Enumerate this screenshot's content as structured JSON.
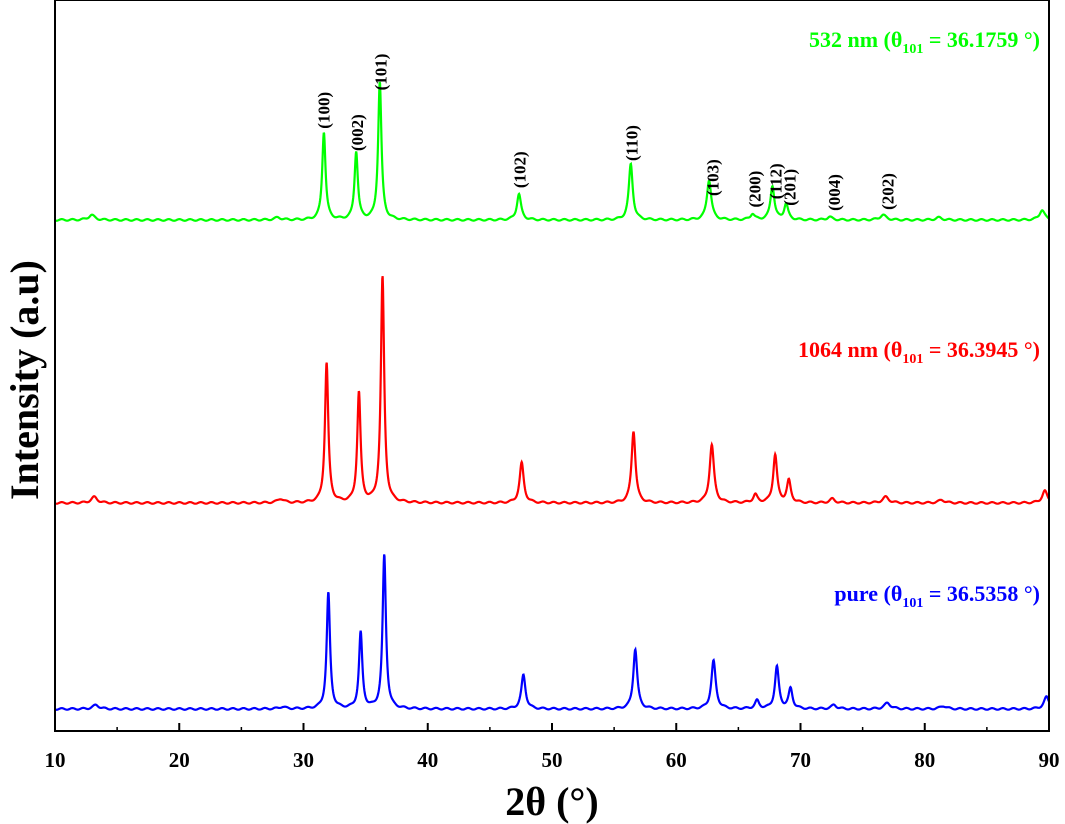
{
  "chart_data": {
    "type": "line",
    "xlabel": "2θ (°)",
    "ylabel": "Intensity (a.u)",
    "xlim": [
      10,
      90
    ],
    "x_ticks": [
      "10",
      "20",
      "30",
      "40",
      "50",
      "60",
      "70",
      "80",
      "90"
    ],
    "y_ticks_labeled": false,
    "grid": false,
    "peaks": [
      {
        "x": 13.3,
        "blue": 0.2,
        "red": 0.3,
        "green": 0.25,
        "w": 0.6
      },
      {
        "x": 28.3,
        "blue": 0.1,
        "red": 0.2,
        "green": 0.12,
        "w": 0.6
      },
      {
        "x": 32.0,
        "blue": 5.8,
        "red": 7.0,
        "green": 4.4,
        "w": 0.32
      },
      {
        "x": 34.6,
        "blue": 3.8,
        "red": 5.5,
        "green": 3.4,
        "w": 0.32
      },
      {
        "x": 36.5,
        "blue": 7.7,
        "red": 11.3,
        "green": 6.9,
        "w": 0.32
      },
      {
        "x": 47.7,
        "blue": 1.7,
        "red": 2.0,
        "green": 1.3,
        "w": 0.4
      },
      {
        "x": 56.7,
        "blue": 3.0,
        "red": 3.6,
        "green": 2.8,
        "w": 0.38
      },
      {
        "x": 63.0,
        "blue": 2.4,
        "red": 2.9,
        "green": 2.0,
        "w": 0.42
      },
      {
        "x": 66.5,
        "blue": 0.4,
        "red": 0.4,
        "green": 0.3,
        "w": 0.4
      },
      {
        "x": 68.1,
        "blue": 2.1,
        "red": 2.4,
        "green": 1.7,
        "w": 0.38
      },
      {
        "x": 69.2,
        "blue": 1.0,
        "red": 1.1,
        "green": 0.8,
        "w": 0.38
      },
      {
        "x": 72.7,
        "blue": 0.2,
        "red": 0.2,
        "green": 0.15,
        "w": 0.5
      },
      {
        "x": 77.0,
        "blue": 0.3,
        "red": 0.3,
        "green": 0.25,
        "w": 0.6
      },
      {
        "x": 81.5,
        "blue": 0.15,
        "red": 0.15,
        "green": 0.12,
        "w": 0.6
      },
      {
        "x": 89.8,
        "blue": 0.6,
        "red": 0.6,
        "green": 0.5,
        "w": 0.5
      }
    ],
    "series": [
      {
        "name": "pure",
        "label_prefix": "pure (θ",
        "label_sub": "101",
        "label_suffix": " = 36.5358 °)",
        "color": "#0000ff",
        "peak_key": "blue",
        "shift": 0.0
      },
      {
        "name": "1064 nm",
        "label_prefix": "1064 nm (θ",
        "label_sub": "101",
        "label_suffix": " = 36.3945 °)",
        "color": "#ff0000",
        "peak_key": "red",
        "shift": -0.14
      },
      {
        "name": "532 nm",
        "label_prefix": "532 nm (θ",
        "label_sub": "101",
        "label_suffix": " = 36.1759 °)",
        "color": "#00ff00",
        "peak_key": "green",
        "shift": -0.36
      }
    ],
    "annotations": [
      {
        "text": "(100)",
        "x": 31.6
      },
      {
        "text": "(002)",
        "x": 34.3
      },
      {
        "text": "(101)",
        "x": 36.2
      },
      {
        "text": "(102)",
        "x": 47.4
      },
      {
        "text": "(110)",
        "x": 56.4
      },
      {
        "text": "(103)",
        "x": 62.9
      },
      {
        "text": "(200)",
        "x": 66.3
      },
      {
        "text": "(112)",
        "x": 68.0
      },
      {
        "text": "(201)",
        "x": 69.1
      },
      {
        "text": "(004)",
        "x": 72.7
      },
      {
        "text": "(202)",
        "x": 77.0
      }
    ]
  }
}
